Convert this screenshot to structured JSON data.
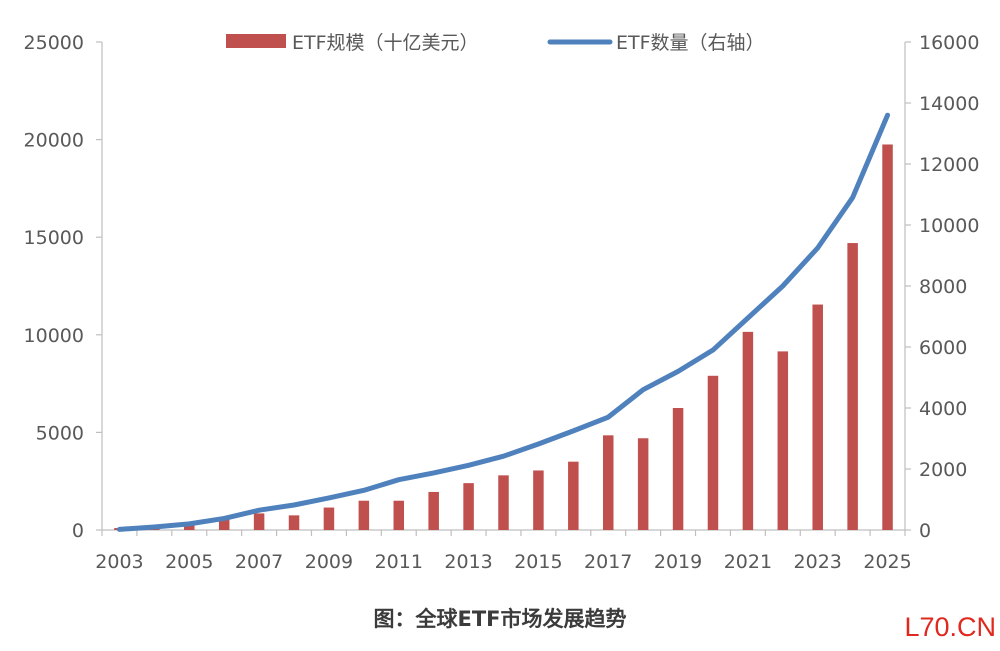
{
  "chart_data": {
    "type": "bar",
    "categories": [
      "2003",
      "2004",
      "2005",
      "2006",
      "2007",
      "2008",
      "2009",
      "2010",
      "2011",
      "2012",
      "2013",
      "2014",
      "2015",
      "2016",
      "2017",
      "2018",
      "2019",
      "2020",
      "2021",
      "2022",
      "2023",
      "2024",
      "2025"
    ],
    "x_tick_labels": [
      "2003",
      "2005",
      "2007",
      "2009",
      "2011",
      "2013",
      "2015",
      "2017",
      "2019",
      "2021",
      "2023",
      "2025"
    ],
    "y_left_ticks": [
      "0",
      "5000",
      "10000",
      "15000",
      "20000",
      "25000"
    ],
    "y_right_ticks": [
      "0",
      "2000",
      "4000",
      "6000",
      "8000",
      "10000",
      "12000",
      "14000",
      "16000"
    ],
    "ylim_left": [
      0,
      25000
    ],
    "ylim_right": [
      0,
      16000
    ],
    "series": [
      {
        "name": "ETF规模（十亿美元）",
        "type": "bar",
        "axis": "left",
        "color": "#c0504d",
        "values": [
          100,
          200,
          300,
          550,
          850,
          750,
          1150,
          1500,
          1500,
          1950,
          2400,
          2800,
          3050,
          3500,
          4850,
          4700,
          6250,
          7900,
          10150,
          9150,
          11550,
          14700,
          19750
        ]
      },
      {
        "name": "ETF数量（右轴）",
        "type": "line",
        "axis": "right",
        "color": "#4f81bd",
        "values": [
          20,
          100,
          200,
          380,
          650,
          820,
          1050,
          1300,
          1650,
          1870,
          2120,
          2420,
          2820,
          3250,
          3700,
          4600,
          5200,
          5900,
          6950,
          8000,
          9250,
          10900,
          13600
        ]
      }
    ],
    "legend_position": "top",
    "grid": false
  },
  "caption": "图：全球ETF市场发展趋势",
  "watermark": "L70.CN"
}
